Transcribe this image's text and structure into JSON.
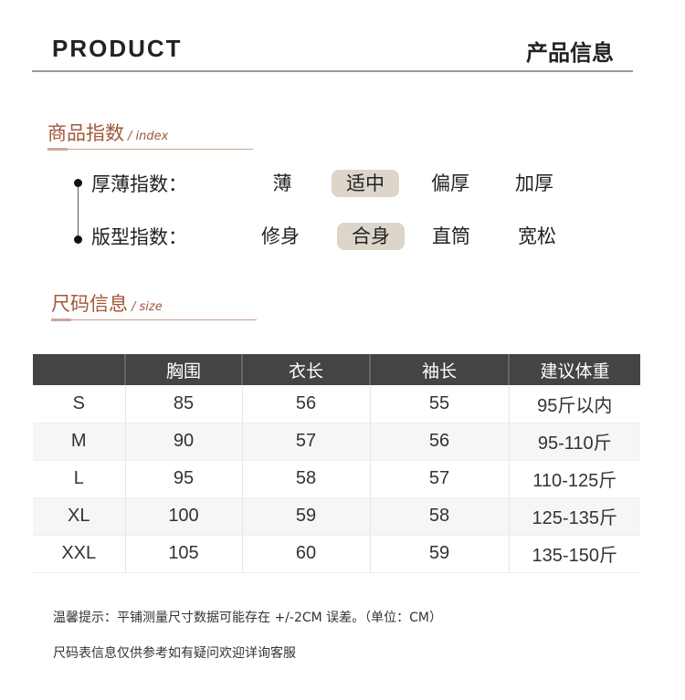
{
  "header": {
    "title_en": "PRODUCT",
    "title_cn": "产品信息"
  },
  "index_section": {
    "title": "商品指数",
    "sub": "/ index",
    "rows": [
      {
        "label": "厚薄指数：",
        "options": [
          "薄",
          "适中",
          "偏厚",
          "加厚"
        ],
        "selected": "适中"
      },
      {
        "label": "版型指数：",
        "options": [
          "修身",
          "合身",
          "直筒",
          "宽松"
        ],
        "selected": "合身"
      }
    ]
  },
  "size_section": {
    "title": "尺码信息",
    "sub": "/ size"
  },
  "table": {
    "headers": [
      "",
      "胸围",
      "衣长",
      "袖长",
      "建议体重"
    ],
    "rows": [
      [
        "S",
        "85",
        "56",
        "55",
        "95斤以内"
      ],
      [
        "M",
        "90",
        "57",
        "56",
        "95-110斤"
      ],
      [
        "L",
        "95",
        "58",
        "57",
        "110-125斤"
      ],
      [
        "XL",
        "100",
        "59",
        "58",
        "125-135斤"
      ],
      [
        "XXL",
        "105",
        "60",
        "59",
        "135-150斤"
      ]
    ]
  },
  "notes": [
    "温馨提示：平铺测量尺寸数据可能存在 +/-2CM 误差。（单位：CM）",
    "尺码表信息仅供参考如有疑问欢迎详询客服"
  ],
  "colors": {
    "accent": "#a0583a",
    "selected_bg": "#dcd6ca",
    "table_header": "#444444"
  }
}
